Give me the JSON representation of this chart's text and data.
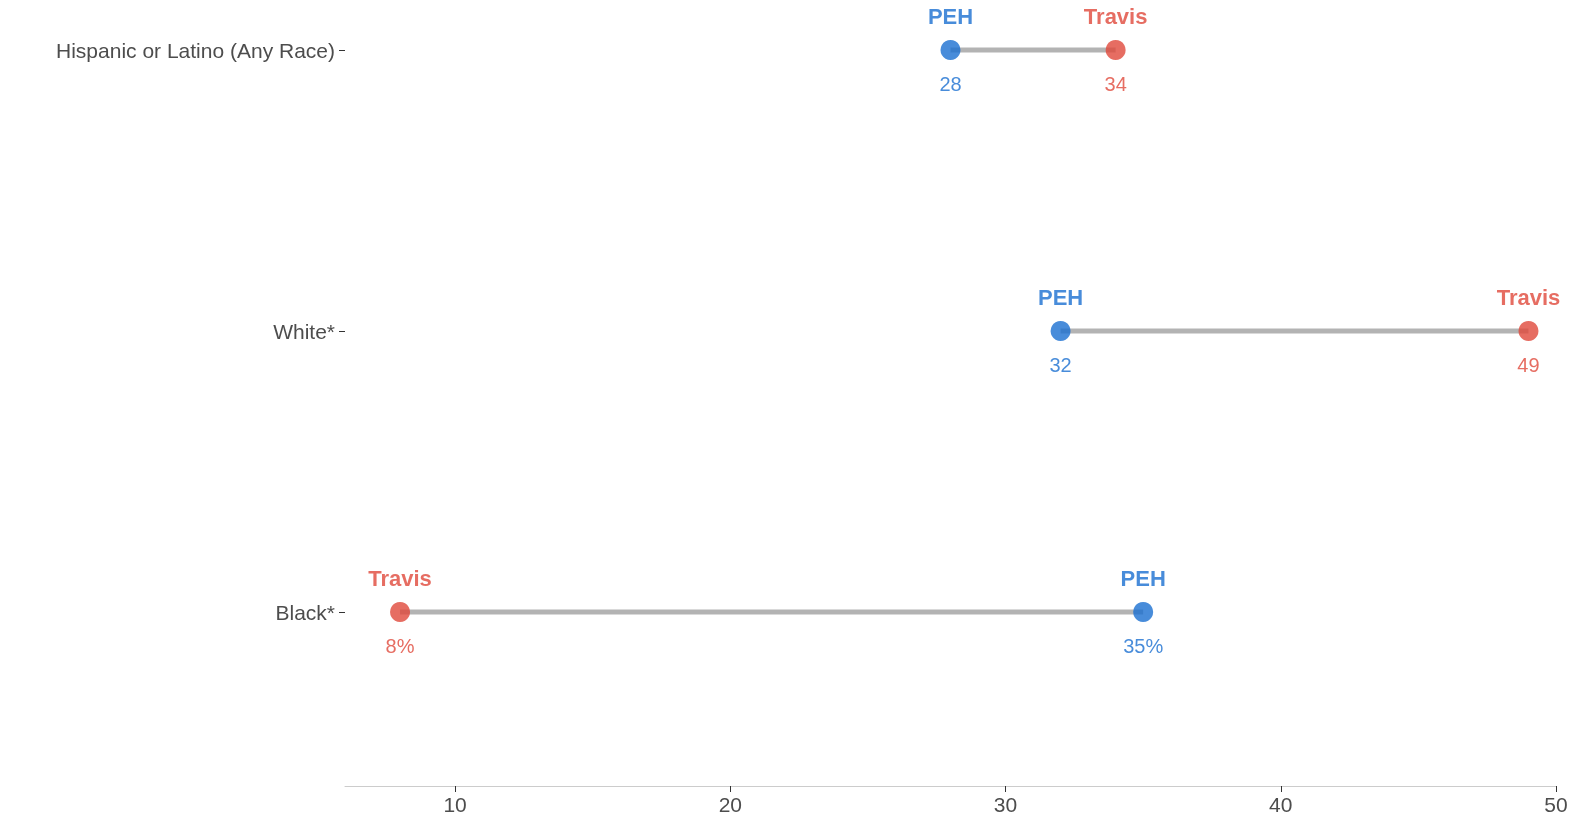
{
  "chart_data": {
    "type": "scatter",
    "categories": [
      "Hispanic or Latino (Any Race)",
      "White*",
      "Black*"
    ],
    "series": [
      {
        "name": "PEH",
        "color": "#1a6fd1",
        "values": [
          28,
          32,
          35
        ],
        "value_labels": [
          "28",
          "32",
          "35%"
        ]
      },
      {
        "name": "Travis",
        "color": "#e0483b",
        "values": [
          34,
          49,
          8
        ],
        "value_labels": [
          "34",
          "49",
          "8%"
        ]
      }
    ],
    "orientation": "horizontal",
    "xlim": [
      6,
      50
    ],
    "xticks": [
      10,
      20,
      30,
      40,
      50
    ],
    "grid": false,
    "legend": false,
    "marker": "circle"
  }
}
